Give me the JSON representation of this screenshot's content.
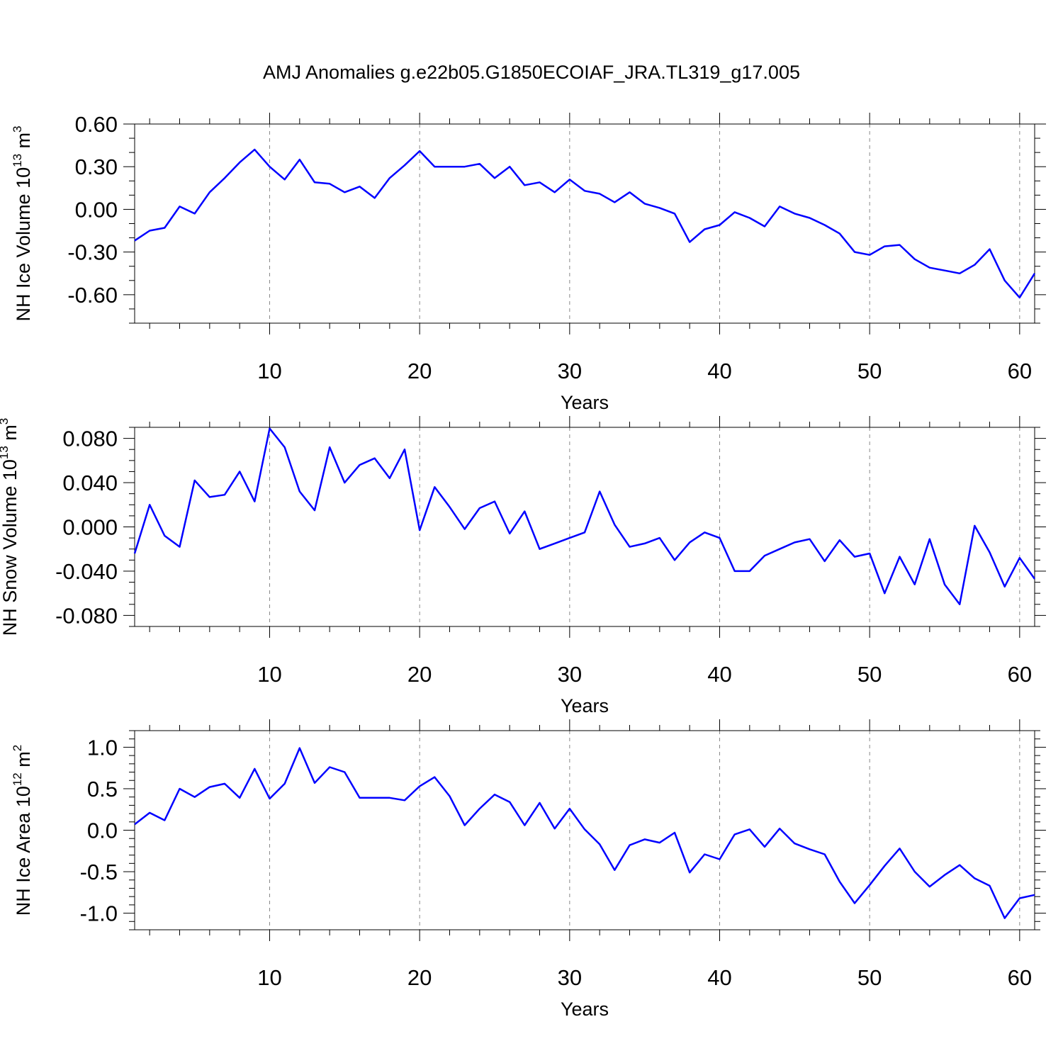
{
  "title": "AMJ Anomalies g.e22b05.G1850ECOIAF_JRA.TL319_g17.005",
  "colors": {
    "line": "#0000ff",
    "axis": "#000000",
    "grid": "#888888"
  },
  "chart_data": [
    {
      "type": "line",
      "ylabel_main": "NH Ice Volume 10",
      "ylabel_exp": "13",
      "ylabel_unit": " m",
      "ylabel_unit_exp": "3",
      "xlabel": "Years",
      "xlim": [
        1,
        61
      ],
      "ylim": [
        -0.8,
        0.6
      ],
      "y_ticks": [
        0.6,
        0.3,
        0.0,
        -0.3,
        -0.6
      ],
      "y_tick_labels": [
        "0.60",
        "0.30",
        "0.00",
        "-0.30",
        "-0.60"
      ],
      "y_minor_step": 0.1,
      "x_ticks": [
        10,
        20,
        30,
        40,
        50,
        60
      ],
      "x_tick_labels": [
        "10",
        "20",
        "30",
        "40",
        "50",
        "60"
      ],
      "grid": "x-major-dashed",
      "x": [
        1,
        2,
        3,
        4,
        5,
        6,
        7,
        8,
        9,
        10,
        11,
        12,
        13,
        14,
        15,
        16,
        17,
        18,
        19,
        20,
        21,
        22,
        23,
        24,
        25,
        26,
        27,
        28,
        29,
        30,
        31,
        32,
        33,
        34,
        35,
        36,
        37,
        38,
        39,
        40,
        41,
        42,
        43,
        44,
        45,
        46,
        47,
        48,
        49,
        50,
        51,
        52,
        53,
        54,
        55,
        56,
        57,
        58,
        59,
        60,
        61
      ],
      "values": [
        -0.22,
        -0.15,
        -0.13,
        0.02,
        -0.03,
        0.12,
        0.22,
        0.33,
        0.42,
        0.3,
        0.21,
        0.35,
        0.19,
        0.18,
        0.12,
        0.16,
        0.08,
        0.22,
        0.31,
        0.41,
        0.3,
        0.3,
        0.3,
        0.32,
        0.22,
        0.3,
        0.17,
        0.19,
        0.12,
        0.21,
        0.13,
        0.11,
        0.05,
        0.12,
        0.04,
        0.01,
        -0.03,
        -0.23,
        -0.14,
        -0.11,
        -0.02,
        -0.06,
        -0.12,
        0.02,
        -0.03,
        -0.06,
        -0.11,
        -0.17,
        -0.3,
        -0.32,
        -0.26,
        -0.25,
        -0.35,
        -0.41,
        -0.43,
        -0.45,
        -0.39,
        -0.28,
        -0.5,
        -0.62,
        -0.45
      ]
    },
    {
      "type": "line",
      "ylabel_main": "NH Snow Volume 10",
      "ylabel_exp": "13",
      "ylabel_unit": " m",
      "ylabel_unit_exp": "3",
      "xlabel": "Years",
      "xlim": [
        1,
        61
      ],
      "ylim": [
        -0.09,
        0.09
      ],
      "y_ticks": [
        0.08,
        0.04,
        0.0,
        -0.04,
        -0.08
      ],
      "y_tick_labels": [
        "0.080",
        "0.040",
        "0.000",
        "-0.040",
        "-0.080"
      ],
      "y_minor_step": 0.01,
      "x_ticks": [
        10,
        20,
        30,
        40,
        50,
        60
      ],
      "x_tick_labels": [
        "10",
        "20",
        "30",
        "40",
        "50",
        "60"
      ],
      "grid": "x-major-dashed",
      "x": [
        1,
        2,
        3,
        4,
        5,
        6,
        7,
        8,
        9,
        10,
        11,
        12,
        13,
        14,
        15,
        16,
        17,
        18,
        19,
        20,
        21,
        22,
        23,
        24,
        25,
        26,
        27,
        28,
        29,
        30,
        31,
        32,
        33,
        34,
        35,
        36,
        37,
        38,
        39,
        40,
        41,
        42,
        43,
        44,
        45,
        46,
        47,
        48,
        49,
        50,
        51,
        52,
        53,
        54,
        55,
        56,
        57,
        58,
        59,
        60,
        61
      ],
      "values": [
        -0.024,
        0.02,
        -0.008,
        -0.018,
        0.042,
        0.027,
        0.029,
        0.05,
        0.023,
        0.089,
        0.072,
        0.032,
        0.015,
        0.072,
        0.04,
        0.056,
        0.062,
        0.044,
        0.07,
        -0.003,
        0.036,
        0.018,
        -0.002,
        0.017,
        0.023,
        -0.006,
        0.014,
        -0.02,
        -0.015,
        -0.01,
        -0.005,
        0.032,
        0.002,
        -0.018,
        -0.015,
        -0.01,
        -0.03,
        -0.014,
        -0.005,
        -0.01,
        -0.04,
        -0.04,
        -0.026,
        -0.02,
        -0.014,
        -0.011,
        -0.031,
        -0.012,
        -0.027,
        -0.024,
        -0.06,
        -0.027,
        -0.052,
        -0.011,
        -0.052,
        -0.07,
        0.001,
        -0.023,
        -0.054,
        -0.028,
        -0.047
      ]
    },
    {
      "type": "line",
      "ylabel_main": "NH Ice Area 10",
      "ylabel_exp": "12",
      "ylabel_unit": " m",
      "ylabel_unit_exp": "2",
      "xlabel": "Years",
      "xlim": [
        1,
        61
      ],
      "ylim": [
        -1.2,
        1.2
      ],
      "y_ticks": [
        1.0,
        0.5,
        0.0,
        -0.5,
        -1.0
      ],
      "y_tick_labels": [
        "1.0",
        "0.5",
        "0.0",
        "-0.5",
        "-1.0"
      ],
      "y_minor_step": 0.1,
      "x_ticks": [
        10,
        20,
        30,
        40,
        50,
        60
      ],
      "x_tick_labels": [
        "10",
        "20",
        "30",
        "40",
        "50",
        "60"
      ],
      "grid": "x-major-dashed",
      "x": [
        1,
        2,
        3,
        4,
        5,
        6,
        7,
        8,
        9,
        10,
        11,
        12,
        13,
        14,
        15,
        16,
        17,
        18,
        19,
        20,
        21,
        22,
        23,
        24,
        25,
        26,
        27,
        28,
        29,
        30,
        31,
        32,
        33,
        34,
        35,
        36,
        37,
        38,
        39,
        40,
        41,
        42,
        43,
        44,
        45,
        46,
        47,
        48,
        49,
        50,
        51,
        52,
        53,
        54,
        55,
        56,
        57,
        58,
        59,
        60,
        61
      ],
      "values": [
        0.07,
        0.21,
        0.12,
        0.5,
        0.4,
        0.52,
        0.56,
        0.39,
        0.74,
        0.38,
        0.56,
        0.99,
        0.57,
        0.76,
        0.7,
        0.39,
        0.39,
        0.39,
        0.36,
        0.53,
        0.64,
        0.41,
        0.06,
        0.26,
        0.43,
        0.34,
        0.06,
        0.33,
        0.02,
        0.26,
        0.01,
        -0.17,
        -0.48,
        -0.18,
        -0.11,
        -0.15,
        -0.03,
        -0.51,
        -0.29,
        -0.35,
        -0.05,
        0.01,
        -0.2,
        0.02,
        -0.16,
        -0.23,
        -0.29,
        -0.62,
        -0.88,
        -0.66,
        -0.43,
        -0.22,
        -0.5,
        -0.68,
        -0.54,
        -0.42,
        -0.58,
        -0.67,
        -1.06,
        -0.82,
        -0.78
      ]
    }
  ]
}
